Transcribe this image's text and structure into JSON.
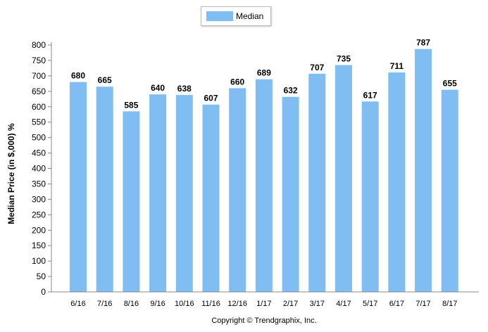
{
  "chart_data": {
    "type": "bar",
    "categories": [
      "6/16",
      "7/16",
      "8/16",
      "9/16",
      "10/16",
      "11/16",
      "12/16",
      "1/17",
      "2/17",
      "3/17",
      "4/17",
      "5/17",
      "6/17",
      "7/17",
      "8/17"
    ],
    "series": [
      {
        "name": "Median",
        "values": [
          680,
          665,
          585,
          640,
          638,
          607,
          660,
          689,
          632,
          707,
          735,
          617,
          711,
          787,
          655
        ],
        "color": "#7fbdf2"
      }
    ],
    "ylabel": "Median Price (in $,000) %",
    "xlabel": "",
    "ylim": [
      0,
      800
    ],
    "yticks": [
      0,
      50,
      100,
      150,
      200,
      250,
      300,
      350,
      400,
      450,
      500,
      550,
      600,
      650,
      700,
      750,
      800
    ],
    "grid": false,
    "legend_position": "top-center",
    "data_labels": true
  },
  "footer": {
    "copyright": "Copyright © Trendgraphix, Inc."
  }
}
